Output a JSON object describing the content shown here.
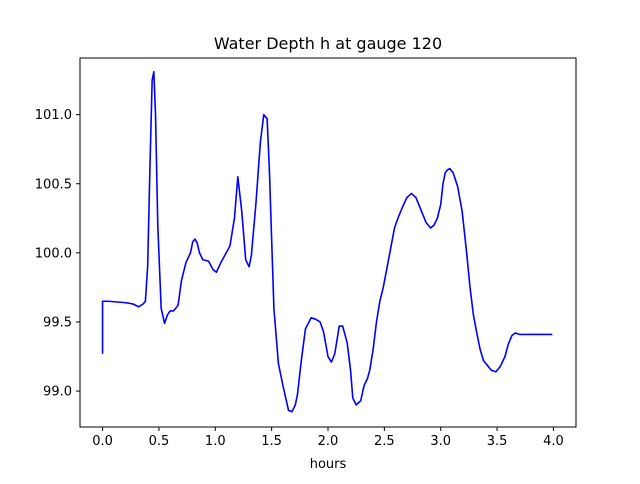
{
  "chart_data": {
    "type": "line",
    "title": "Water Depth h at gauge 120",
    "xlabel": "hours",
    "ylabel": "",
    "xlim": [
      -0.2,
      4.2
    ],
    "ylim": [
      98.74,
      101.41
    ],
    "xticks": [
      0.0,
      0.5,
      1.0,
      1.5,
      2.0,
      2.5,
      3.0,
      3.5,
      4.0
    ],
    "xtick_labels": [
      "0.0",
      "0.5",
      "1.0",
      "1.5",
      "2.0",
      "2.5",
      "3.0",
      "3.5",
      "4.0"
    ],
    "yticks": [
      99.0,
      99.5,
      100.0,
      100.5,
      101.0
    ],
    "ytick_labels": [
      "99.0",
      "99.5",
      "100.0",
      "100.5",
      "101.0"
    ],
    "grid": false,
    "legend": "none",
    "series": [
      {
        "color": "#0000ff",
        "x": [
          0.0,
          0.0,
          0.05,
          0.2,
          0.27,
          0.32,
          0.36,
          0.38,
          0.4,
          0.42,
          0.44,
          0.455,
          0.47,
          0.49,
          0.52,
          0.55,
          0.575,
          0.6,
          0.63,
          0.67,
          0.7,
          0.74,
          0.78,
          0.8,
          0.82,
          0.84,
          0.86,
          0.89,
          0.94,
          0.98,
          1.01,
          1.05,
          1.09,
          1.13,
          1.17,
          1.2,
          1.235,
          1.27,
          1.3,
          1.32,
          1.36,
          1.4,
          1.43,
          1.46,
          1.48,
          1.52,
          1.56,
          1.6,
          1.65,
          1.68,
          1.71,
          1.73,
          1.76,
          1.8,
          1.85,
          1.89,
          1.93,
          1.96,
          2.0,
          2.03,
          2.06,
          2.1,
          2.13,
          2.17,
          2.2,
          2.22,
          2.25,
          2.29,
          2.32,
          2.35,
          2.37,
          2.4,
          2.43,
          2.46,
          2.49,
          2.53,
          2.56,
          2.59,
          2.62,
          2.66,
          2.7,
          2.74,
          2.78,
          2.83,
          2.87,
          2.91,
          2.94,
          2.97,
          3.0,
          3.02,
          3.04,
          3.06,
          3.08,
          3.11,
          3.15,
          3.19,
          3.23,
          3.26,
          3.29,
          3.32,
          3.35,
          3.38,
          3.41,
          3.45,
          3.49,
          3.53,
          3.57,
          3.6,
          3.63,
          3.66,
          3.7,
          3.73,
          3.76,
          3.8,
          3.84,
          3.88,
          3.92,
          3.95,
          3.97,
          3.99
        ],
        "y": [
          99.27,
          99.65,
          99.65,
          99.64,
          99.63,
          99.61,
          99.63,
          99.65,
          99.9,
          100.6,
          101.25,
          101.31,
          101.0,
          100.2,
          99.6,
          99.49,
          99.55,
          99.58,
          99.58,
          99.62,
          99.8,
          99.93,
          100.0,
          100.08,
          100.1,
          100.07,
          100.0,
          99.95,
          99.94,
          99.88,
          99.86,
          99.93,
          99.99,
          100.05,
          100.25,
          100.55,
          100.3,
          99.95,
          99.9,
          99.98,
          100.35,
          100.8,
          101.0,
          100.97,
          100.6,
          99.6,
          99.2,
          99.04,
          98.86,
          98.85,
          98.9,
          98.98,
          99.2,
          99.45,
          99.53,
          99.52,
          99.5,
          99.43,
          99.25,
          99.21,
          99.27,
          99.47,
          99.47,
          99.35,
          99.15,
          98.95,
          98.9,
          98.93,
          99.04,
          99.09,
          99.15,
          99.3,
          99.5,
          99.65,
          99.75,
          99.92,
          100.05,
          100.18,
          100.25,
          100.33,
          100.4,
          100.43,
          100.4,
          100.3,
          100.22,
          100.18,
          100.2,
          100.25,
          100.35,
          100.5,
          100.58,
          100.6,
          100.61,
          100.58,
          100.48,
          100.3,
          100.0,
          99.75,
          99.55,
          99.42,
          99.3,
          99.22,
          99.19,
          99.15,
          99.14,
          99.18,
          99.25,
          99.34,
          99.4,
          99.42,
          99.41,
          99.41,
          99.41,
          99.41,
          99.41,
          99.41,
          99.41,
          99.41,
          99.41,
          99.41
        ]
      }
    ]
  }
}
